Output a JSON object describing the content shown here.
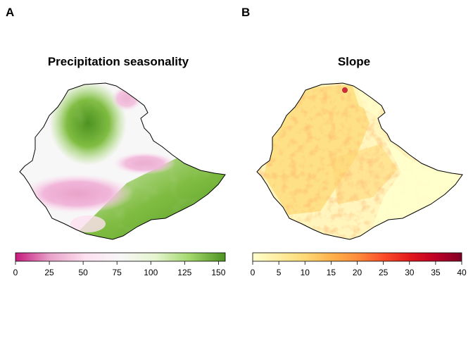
{
  "panels": [
    {
      "letter": "A",
      "title": "Precipitation seasonality",
      "colorbar": {
        "ticks": [
          "0",
          "25",
          "50",
          "75",
          "100",
          "125",
          "150"
        ],
        "range": [
          0,
          155
        ],
        "colors": [
          "#c51b7d",
          "#e9a3c9",
          "#fde0ef",
          "#f7f7f7",
          "#e6f5d0",
          "#a1d76a",
          "#4d9221"
        ]
      }
    },
    {
      "letter": "B",
      "title": "Slope",
      "colorbar": {
        "ticks": [
          "0",
          "5",
          "10",
          "15",
          "20",
          "25",
          "30",
          "35",
          "40"
        ],
        "range": [
          0,
          40
        ],
        "colors": [
          "#ffffcc",
          "#ffeda0",
          "#fed976",
          "#feb24c",
          "#fd8d3c",
          "#fc4e2a",
          "#e31a1c",
          "#bd0026",
          "#800026"
        ]
      }
    }
  ]
}
